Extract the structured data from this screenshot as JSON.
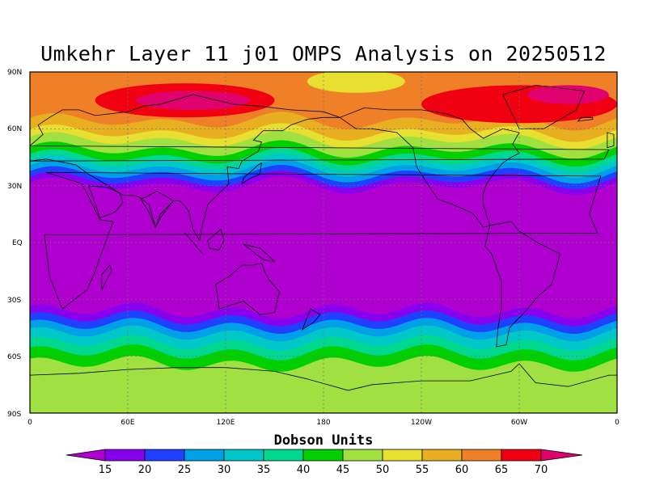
{
  "title": "Umkehr Layer 11 j01 OMPS Analysis on 20250512",
  "colorbar": {
    "title": "Dobson Units",
    "levels": [
      "15",
      "20",
      "25",
      "30",
      "35",
      "40",
      "45",
      "50",
      "55",
      "60",
      "65",
      "70"
    ],
    "colors": [
      "#b000d0",
      "#8800ee",
      "#2040ff",
      "#00a0e8",
      "#00c8c8",
      "#00d890",
      "#00d000",
      "#a0e040",
      "#e8e030",
      "#e8b020",
      "#f08028",
      "#f00010",
      "#e0006e"
    ]
  },
  "map": {
    "lat_labels": [
      "90N",
      "60N",
      "30N",
      "EQ",
      "30S",
      "60S",
      "90S"
    ],
    "lon_labels": [
      "0",
      "60E",
      "120E",
      "180",
      "120W",
      "60W",
      "0"
    ],
    "grid": true,
    "coastlines": true,
    "projection": "cylindrical equidistant, 0 to 360 longitude"
  }
}
